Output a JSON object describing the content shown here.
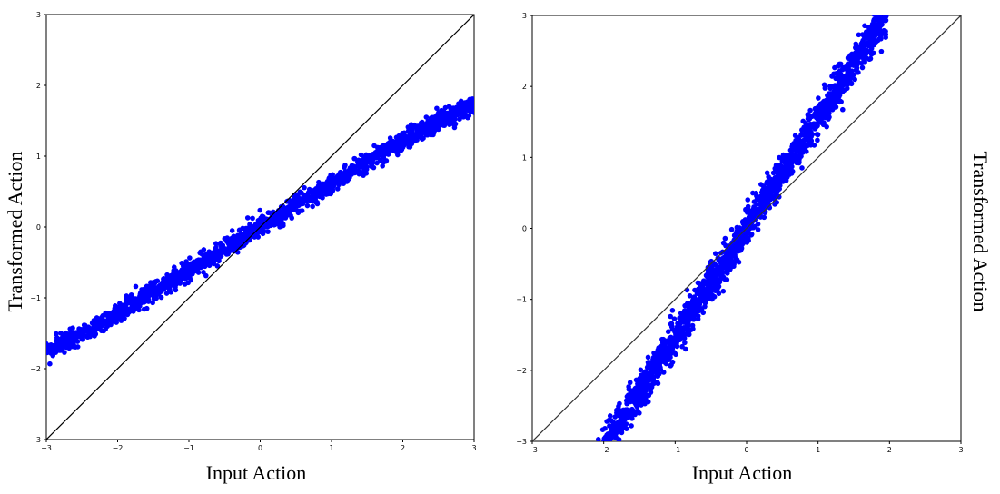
{
  "chart_data": [
    {
      "type": "scatter",
      "title": "",
      "xlabel": "Input Action",
      "ylabel": "Transformed Action",
      "xlim": [
        -3,
        3
      ],
      "ylim": [
        -3,
        3
      ],
      "xticks": [
        -3,
        -2,
        -1,
        0,
        1,
        2,
        3
      ],
      "yticks": [
        -3,
        -2,
        -1,
        0,
        1,
        2,
        3
      ],
      "xtick_labels": [
        "−3",
        "−2",
        "−1",
        "0",
        "1",
        "2",
        "3"
      ],
      "ytick_labels": [
        "−3",
        "−2",
        "−1",
        "0",
        "1",
        "2",
        "3"
      ],
      "grid": false,
      "ylabel_position": "left",
      "series": [
        {
          "color": "#0000ff",
          "points": [
            [
              -3.0,
              -1.75
            ],
            [
              -2.75,
              -1.63
            ],
            [
              -2.5,
              -1.5
            ],
            [
              -2.25,
              -1.36
            ],
            [
              -2.0,
              -1.22
            ],
            [
              -1.75,
              -1.07
            ],
            [
              -1.5,
              -0.92
            ],
            [
              -1.25,
              -0.77
            ],
            [
              -1.0,
              -0.61
            ],
            [
              -0.75,
              -0.46
            ],
            [
              -0.5,
              -0.31
            ],
            [
              -0.25,
              -0.15
            ],
            [
              0.0,
              0.0
            ],
            [
              0.25,
              0.15
            ],
            [
              0.5,
              0.31
            ],
            [
              0.75,
              0.46
            ],
            [
              1.0,
              0.61
            ],
            [
              1.25,
              0.77
            ],
            [
              1.5,
              0.92
            ],
            [
              1.75,
              1.07
            ],
            [
              2.0,
              1.22
            ],
            [
              2.25,
              1.36
            ],
            [
              2.5,
              1.5
            ],
            [
              2.75,
              1.63
            ],
            [
              3.0,
              1.75
            ]
          ]
        }
      ],
      "reference_line": {
        "from": [
          -3,
          -3
        ],
        "to": [
          3,
          3
        ],
        "color": "#000000"
      }
    },
    {
      "type": "scatter",
      "title": "",
      "xlabel": "Input Action",
      "ylabel": "Transformed Action",
      "xlim": [
        -3,
        3
      ],
      "ylim": [
        -3,
        3
      ],
      "xticks": [
        -3,
        -2,
        -1,
        0,
        1,
        2,
        3
      ],
      "yticks": [
        -3,
        -2,
        -1,
        0,
        1,
        2,
        3
      ],
      "xtick_labels": [
        "−3",
        "−2",
        "−1",
        "0",
        "1",
        "2",
        "3"
      ],
      "ytick_labels": [
        "−3",
        "−2",
        "−1",
        "0",
        "1",
        "2",
        "3"
      ],
      "grid": false,
      "ylabel_position": "right",
      "series": [
        {
          "color": "#0000ff",
          "points": [
            [
              -1.95,
              -3.0
            ],
            [
              -1.75,
              -2.7
            ],
            [
              -1.5,
              -2.3
            ],
            [
              -1.25,
              -1.92
            ],
            [
              -1.0,
              -1.54
            ],
            [
              -0.75,
              -1.16
            ],
            [
              -0.5,
              -0.77
            ],
            [
              -0.25,
              -0.39
            ],
            [
              0.0,
              0.0
            ],
            [
              0.25,
              0.39
            ],
            [
              0.5,
              0.77
            ],
            [
              0.75,
              1.16
            ],
            [
              1.0,
              1.54
            ],
            [
              1.25,
              1.92
            ],
            [
              1.5,
              2.3
            ],
            [
              1.75,
              2.7
            ],
            [
              1.95,
              3.0
            ]
          ]
        }
      ],
      "reference_line": {
        "from": [
          -3,
          -3
        ],
        "to": [
          3,
          3
        ],
        "color": "#333333"
      }
    }
  ]
}
